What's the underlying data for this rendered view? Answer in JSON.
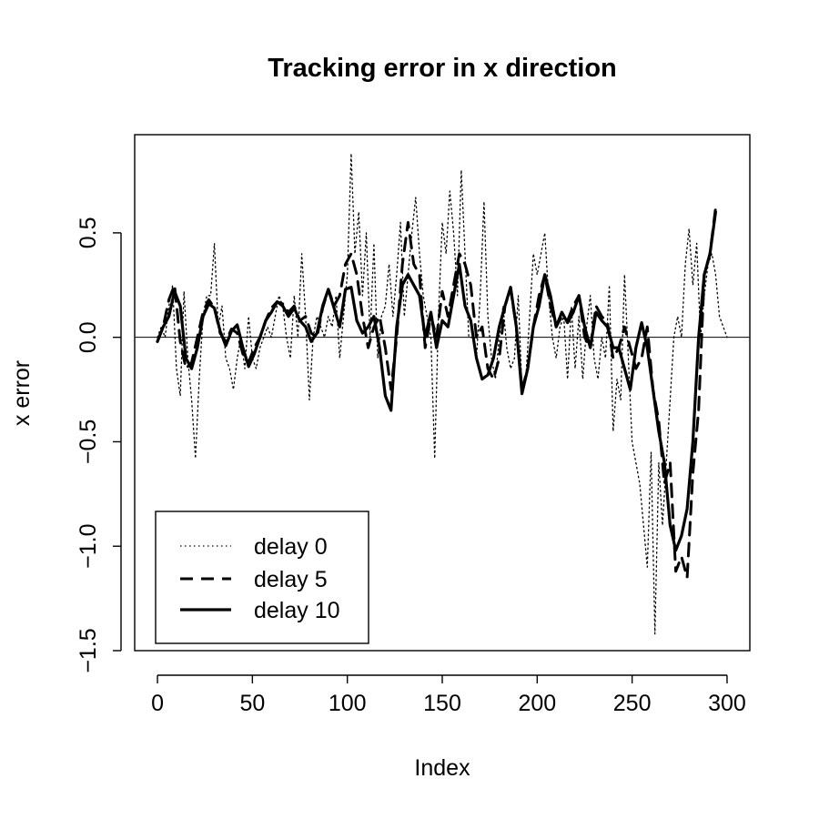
{
  "chart_data": {
    "type": "line",
    "title": "Tracking error in x direction",
    "xlabel": "Index",
    "ylabel": "x error",
    "xlim": [
      -12,
      312
    ],
    "ylim": [
      -1.5,
      0.97
    ],
    "xticks": [
      0,
      50,
      100,
      150,
      200,
      250,
      300
    ],
    "yticks": [
      -1.5,
      -1.0,
      -0.5,
      0.0,
      0.5
    ],
    "xtick_labels": [
      "0",
      "50",
      "100",
      "150",
      "200",
      "250",
      "300"
    ],
    "ytick_labels": [
      "−1.5",
      "−1.0",
      "−0.5",
      "0.0",
      "0.5"
    ],
    "reference_line": 0,
    "grid": false,
    "legend_position": "bottom-left",
    "series": [
      {
        "name": "delay 0",
        "style": "dotted",
        "x": [
          0,
          2,
          4,
          6,
          8,
          10,
          12,
          14,
          16,
          18,
          20,
          22,
          24,
          26,
          28,
          30,
          32,
          34,
          36,
          38,
          40,
          42,
          44,
          46,
          48,
          50,
          52,
          54,
          56,
          58,
          60,
          62,
          64,
          66,
          68,
          70,
          72,
          74,
          76,
          78,
          80,
          82,
          84,
          86,
          88,
          90,
          92,
          94,
          96,
          98,
          100,
          102,
          104,
          106,
          108,
          110,
          112,
          114,
          116,
          118,
          120,
          122,
          124,
          126,
          128,
          130,
          132,
          134,
          136,
          138,
          140,
          142,
          144,
          146,
          148,
          150,
          152,
          154,
          156,
          158,
          160,
          162,
          164,
          166,
          168,
          170,
          172,
          174,
          176,
          178,
          180,
          182,
          184,
          186,
          188,
          190,
          192,
          194,
          196,
          198,
          200,
          202,
          204,
          206,
          208,
          210,
          212,
          214,
          216,
          218,
          220,
          222,
          224,
          226,
          228,
          230,
          232,
          234,
          236,
          238,
          240,
          242,
          244,
          246,
          248,
          250,
          252,
          254,
          256,
          258,
          260,
          262,
          264,
          266,
          268,
          270,
          272,
          274,
          276,
          278,
          280,
          282,
          284,
          286,
          288,
          290,
          292,
          294,
          296,
          298,
          300
        ],
        "y": [
          0.0,
          0.05,
          0.0,
          0.15,
          0.25,
          -0.15,
          -0.28,
          0.22,
          -0.1,
          -0.3,
          -0.58,
          -0.2,
          0.1,
          0.2,
          0.2,
          0.45,
          0.05,
          0.15,
          -0.1,
          -0.15,
          -0.25,
          -0.1,
          0.0,
          -0.15,
          0.1,
          -0.1,
          -0.15,
          -0.05,
          0.0,
          0.05,
          0.0,
          0.1,
          0.2,
          0.15,
          0.0,
          -0.1,
          0.2,
          0.0,
          0.4,
          0.1,
          -0.3,
          0.0,
          0.1,
          0.05,
          0.0,
          0.1,
          0.05,
          0.2,
          -0.1,
          0.1,
          0.3,
          0.88,
          0.4,
          0.6,
          0.2,
          0.5,
          0.0,
          0.45,
          -0.1,
          0.1,
          0.15,
          0.35,
          0.1,
          0.3,
          0.55,
          0.1,
          0.3,
          0.5,
          0.67,
          0.4,
          0.2,
          0.1,
          0.0,
          -0.58,
          0.1,
          0.55,
          0.4,
          0.7,
          0.5,
          0.2,
          0.8,
          0.4,
          0.0,
          0.0,
          -0.1,
          0.2,
          0.65,
          0.1,
          -0.1,
          -0.2,
          0.0,
          0.15,
          -0.05,
          -0.15,
          -0.1,
          0.2,
          -0.25,
          -0.2,
          0.1,
          0.4,
          0.3,
          0.4,
          0.5,
          0.2,
          0.0,
          -0.1,
          0.05,
          0.1,
          -0.2,
          0.15,
          -0.15,
          0.1,
          -0.2,
          0.05,
          0.2,
          -0.1,
          -0.2,
          0.0,
          -0.1,
          0.25,
          -0.45,
          -0.2,
          -0.3,
          0.3,
          -0.1,
          -0.5,
          -0.6,
          -0.7,
          -0.9,
          -1.1,
          -0.55,
          -1.42,
          -0.6,
          -0.9,
          -0.6,
          -0.3,
          0.0,
          0.1,
          0.0,
          0.35,
          0.52,
          0.25,
          0.45,
          0.0,
          0.2,
          0.35,
          0.4,
          0.3,
          0.1,
          0.05,
          0.0
        ],
        "y_note_unused": null
      },
      {
        "name": "delay 5",
        "style": "dashed",
        "x": [
          0,
          3,
          6,
          9,
          12,
          15,
          18,
          21,
          24,
          27,
          30,
          33,
          36,
          39,
          42,
          45,
          48,
          51,
          54,
          57,
          60,
          63,
          66,
          69,
          72,
          75,
          78,
          81,
          84,
          87,
          90,
          93,
          96,
          99,
          102,
          105,
          108,
          111,
          114,
          117,
          120,
          123,
          126,
          129,
          132,
          135,
          138,
          141,
          144,
          147,
          150,
          153,
          156,
          159,
          162,
          165,
          168,
          171,
          174,
          177,
          180,
          183,
          186,
          189,
          192,
          195,
          198,
          201,
          204,
          207,
          210,
          213,
          216,
          219,
          222,
          225,
          228,
          231,
          234,
          237,
          240,
          243,
          246,
          249,
          252,
          255,
          258,
          261,
          264,
          267,
          270,
          273,
          276,
          279,
          282,
          285,
          288,
          291,
          294
        ],
        "y": [
          -0.02,
          0.05,
          0.18,
          0.25,
          -0.02,
          -0.15,
          -0.12,
          0.0,
          0.12,
          0.18,
          0.14,
          0.02,
          -0.02,
          0.04,
          0.02,
          -0.08,
          -0.12,
          -0.05,
          0.0,
          0.08,
          0.14,
          0.17,
          0.16,
          0.12,
          0.15,
          0.08,
          0.1,
          0.02,
          0.0,
          0.14,
          0.23,
          0.15,
          0.2,
          0.35,
          0.4,
          0.3,
          0.1,
          -0.05,
          0.05,
          0.1,
          -0.05,
          -0.25,
          0.0,
          0.35,
          0.55,
          0.35,
          0.3,
          -0.05,
          0.1,
          0.0,
          0.22,
          0.1,
          0.25,
          0.4,
          0.35,
          0.25,
          0.0,
          0.05,
          -0.15,
          -0.2,
          -0.1,
          0.15,
          0.23,
          0.05,
          -0.25,
          -0.15,
          0.05,
          0.2,
          0.3,
          0.15,
          0.05,
          0.1,
          0.08,
          0.15,
          0.2,
          0.0,
          -0.05,
          0.15,
          0.1,
          0.07,
          -0.1,
          -0.05,
          0.05,
          -0.05,
          -0.15,
          -0.1,
          0.05,
          -0.25,
          -0.4,
          -0.7,
          -0.6,
          -1.12,
          -1.05,
          -1.15,
          -0.65,
          -0.35,
          0.3,
          0.4,
          0.62
        ]
      },
      {
        "name": "delay 10",
        "style": "solid",
        "x": [
          0,
          3,
          6,
          9,
          12,
          15,
          18,
          21,
          24,
          27,
          30,
          33,
          36,
          39,
          42,
          45,
          48,
          51,
          54,
          57,
          60,
          63,
          66,
          69,
          72,
          75,
          78,
          81,
          84,
          87,
          90,
          93,
          96,
          99,
          102,
          105,
          108,
          111,
          114,
          117,
          120,
          123,
          126,
          129,
          132,
          135,
          138,
          141,
          144,
          147,
          150,
          153,
          156,
          159,
          162,
          165,
          168,
          171,
          174,
          177,
          180,
          183,
          186,
          189,
          192,
          195,
          198,
          201,
          204,
          207,
          210,
          213,
          216,
          219,
          222,
          225,
          228,
          231,
          234,
          237,
          240,
          243,
          246,
          249,
          252,
          255,
          258,
          261,
          264,
          267,
          270,
          273,
          276,
          279,
          282,
          285,
          288,
          291,
          294
        ],
        "y": [
          -0.02,
          0.05,
          0.1,
          0.22,
          0.15,
          -0.1,
          -0.15,
          -0.05,
          0.1,
          0.16,
          0.14,
          0.03,
          -0.04,
          0.03,
          0.06,
          -0.05,
          -0.14,
          -0.08,
          0.0,
          0.08,
          0.12,
          0.17,
          0.15,
          0.1,
          0.14,
          0.08,
          0.05,
          -0.02,
          0.02,
          0.15,
          0.23,
          0.14,
          0.05,
          0.23,
          0.24,
          0.08,
          0.02,
          0.05,
          0.1,
          -0.05,
          -0.28,
          -0.35,
          0.05,
          0.25,
          0.3,
          0.25,
          0.2,
          0.0,
          0.12,
          -0.05,
          0.08,
          0.05,
          0.2,
          0.35,
          0.15,
          0.08,
          -0.1,
          -0.2,
          -0.18,
          -0.1,
          0.05,
          0.15,
          0.24,
          0.05,
          -0.27,
          -0.15,
          0.05,
          0.15,
          0.3,
          0.2,
          0.05,
          0.12,
          0.07,
          0.12,
          0.2,
          0.05,
          -0.05,
          0.12,
          0.08,
          0.05,
          -0.05,
          -0.05,
          -0.15,
          -0.25,
          -0.05,
          0.07,
          -0.05,
          -0.25,
          -0.45,
          -0.6,
          -0.9,
          -1.02,
          -0.95,
          -0.82,
          -0.5,
          0.0,
          0.3,
          0.4,
          0.6
        ]
      }
    ]
  }
}
